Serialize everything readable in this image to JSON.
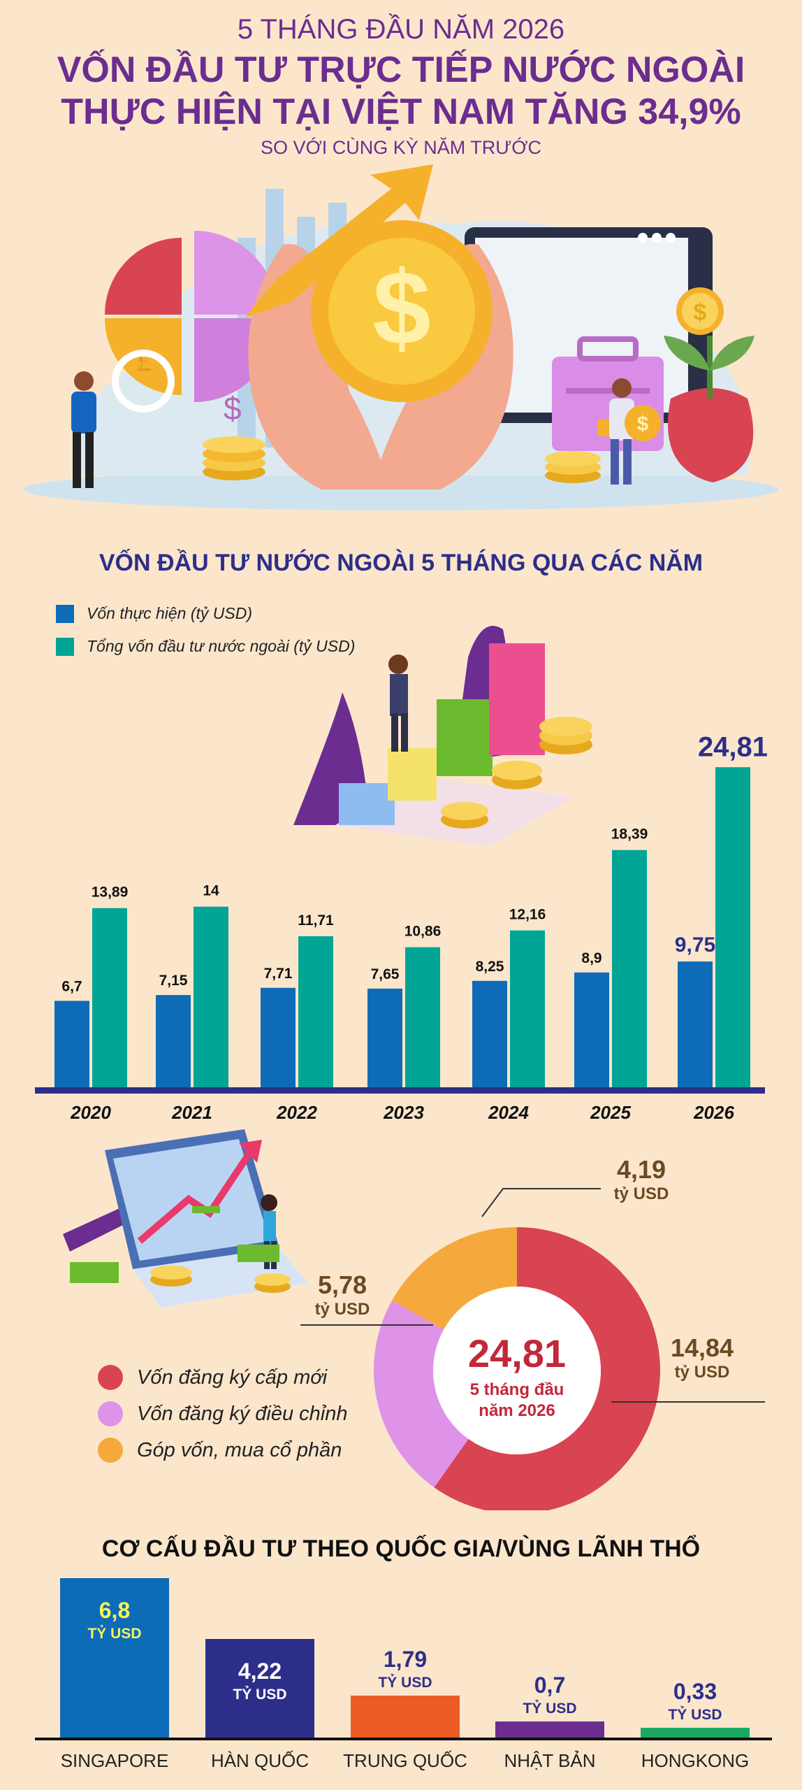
{
  "header": {
    "subtitle": "5 THÁNG ĐẦU NĂM 2026",
    "title_line1": "VỐN ĐẦU TƯ TRỰC TIẾP NƯỚC NGOÀI",
    "title_line2": "THỰC HIỆN TẠI VIỆT NAM TĂNG 34,9%",
    "note": "SO VỚI CÙNG KỲ NĂM TRƯỚC"
  },
  "colors": {
    "background": "#fbe6cc",
    "purple_title": "#6b2d8f",
    "navy_title": "#2d2e8a",
    "bar_realized": "#0e6bb7",
    "bar_total": "#00a596",
    "pie_new": "#d94452",
    "pie_adjust": "#de93e8",
    "pie_share": "#f5a93c",
    "singapore": "#0e6bb7",
    "korea": "#2d2e8a",
    "china": "#ec5b26",
    "japan": "#6b2d8f",
    "hongkong": "#1aa860"
  },
  "illustration": {
    "icons": [
      "dollar-coin-icon",
      "pound-coin-icon",
      "briefcase-icon",
      "money-bag-plant-icon"
    ]
  },
  "chart_data": [
    {
      "type": "bar",
      "title": "VỐN ĐẦU TƯ NƯỚC NGOÀI 5 THÁNG QUA CÁC NĂM",
      "categories": [
        "2020",
        "2021",
        "2022",
        "2023",
        "2024",
        "2025",
        "2026"
      ],
      "series": [
        {
          "name": "Vốn thực hiện (tỷ USD)",
          "values": [
            6.7,
            7.15,
            7.71,
            7.65,
            8.25,
            8.9,
            9.75
          ],
          "labels": [
            "6,7",
            "7,15",
            "7,71",
            "7,65",
            "8,25",
            "8,9",
            "9,75"
          ]
        },
        {
          "name": "Tổng vốn đầu tư nước ngoài (tỷ USD)",
          "values": [
            13.89,
            14,
            11.71,
            10.86,
            12.16,
            18.39,
            24.81
          ],
          "labels": [
            "13,89",
            "14",
            "11,71",
            "10,86",
            "12,16",
            "18,39",
            "24,81"
          ]
        }
      ],
      "ylim": [
        0,
        26
      ]
    },
    {
      "type": "pie",
      "center_value": "24,81",
      "center_text": "5 tháng đầu năm 2026",
      "slices": [
        {
          "name": "Vốn đăng ký cấp mới",
          "value": 14.84,
          "label": "14,84",
          "unit": "tỷ USD"
        },
        {
          "name": "Vốn đăng ký điều chỉnh",
          "value": 5.78,
          "label": "5,78",
          "unit": "tỷ USD"
        },
        {
          "name": "Góp vốn, mua cổ phần",
          "value": 4.19,
          "label": "4,19",
          "unit": "tỷ USD"
        }
      ]
    },
    {
      "type": "bar",
      "title": "CƠ CẤU ĐẦU TƯ THEO QUỐC GIA/VÙNG LÃNH THỔ",
      "categories": [
        "SINGAPORE",
        "HÀN QUỐC",
        "TRUNG QUỐC",
        "NHẬT BẢN",
        "HONGKONG"
      ],
      "values": [
        6.8,
        4.22,
        1.79,
        0.7,
        0.33
      ],
      "labels": [
        "6,8",
        "4,22",
        "1,79",
        "0,7",
        "0,33"
      ],
      "unit": "TỶ USD"
    }
  ]
}
